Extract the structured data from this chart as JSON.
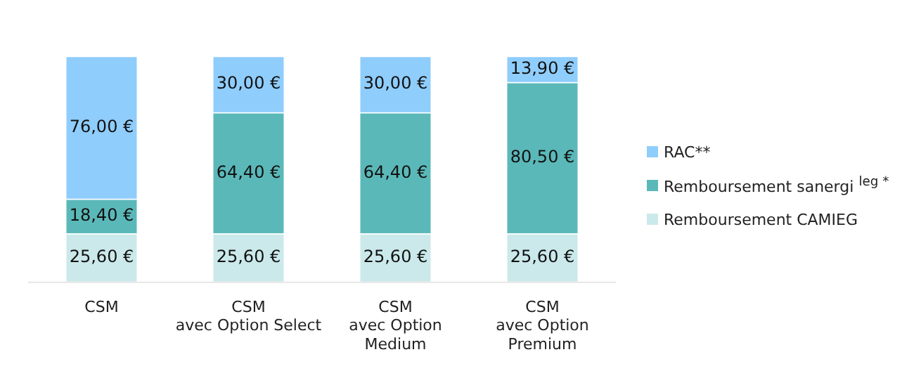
{
  "chart_data": {
    "type": "bar",
    "stacked": true,
    "legend": "right",
    "grid": false,
    "categories": [
      "CSM",
      "CSM\navec Option Select",
      "CSM\navec Option\nMedium",
      "CSM\navec Option\nPremium"
    ],
    "series": [
      {
        "name": "Remboursement CAMIEG",
        "color": "#cbe9ea",
        "values": [
          25.6,
          25.6,
          25.6,
          25.6
        ],
        "value_labels": [
          "25,60 €",
          "25,60 €",
          "25,60 €",
          "25,60 €"
        ]
      },
      {
        "name": "Remboursement sanergi $^{leg *}$",
        "color": "#5bb8b9",
        "values": [
          18.4,
          64.4,
          64.4,
          80.5
        ],
        "value_labels": [
          "18,40 €",
          "64,40 €",
          "64,40 €",
          "80,50 €"
        ]
      },
      {
        "name": "RAC**",
        "color": "#8fcdfc",
        "values": [
          76,
          30,
          30,
          13.9
        ],
        "value_labels": [
          "76,00 €",
          "30,00 €",
          "30,00 €",
          "13,90 €"
        ]
      }
    ]
  }
}
